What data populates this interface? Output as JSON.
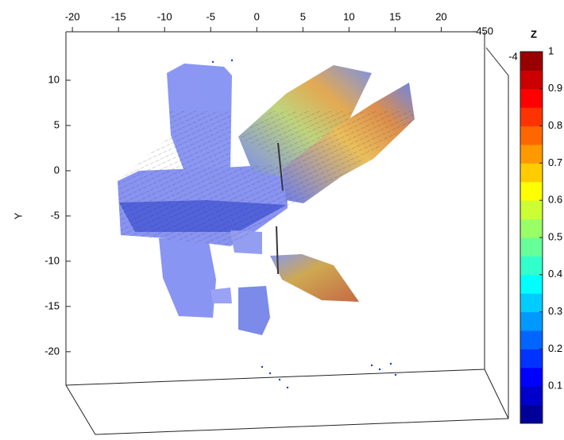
{
  "chart_data": {
    "type": "quiver3d",
    "ylabel": "Y",
    "xticks": [
      -20,
      -15,
      -10,
      -5,
      0,
      5,
      10,
      15,
      20
    ],
    "xlim": [
      -20.7,
      24.7
    ],
    "yticks": [
      -20,
      -15,
      -10,
      -5,
      0,
      5,
      10
    ],
    "ylim": [
      -23.7,
      13.6
    ],
    "z_tick_labels": [
      "-450",
      "-4"
    ],
    "colorbar": {
      "label": "Z",
      "lim": [
        0,
        1
      ],
      "ticks": [
        0.1,
        0.2,
        0.3,
        0.4,
        0.5,
        0.6,
        0.7,
        0.8,
        0.9,
        1
      ],
      "colormap": "jet"
    }
  }
}
